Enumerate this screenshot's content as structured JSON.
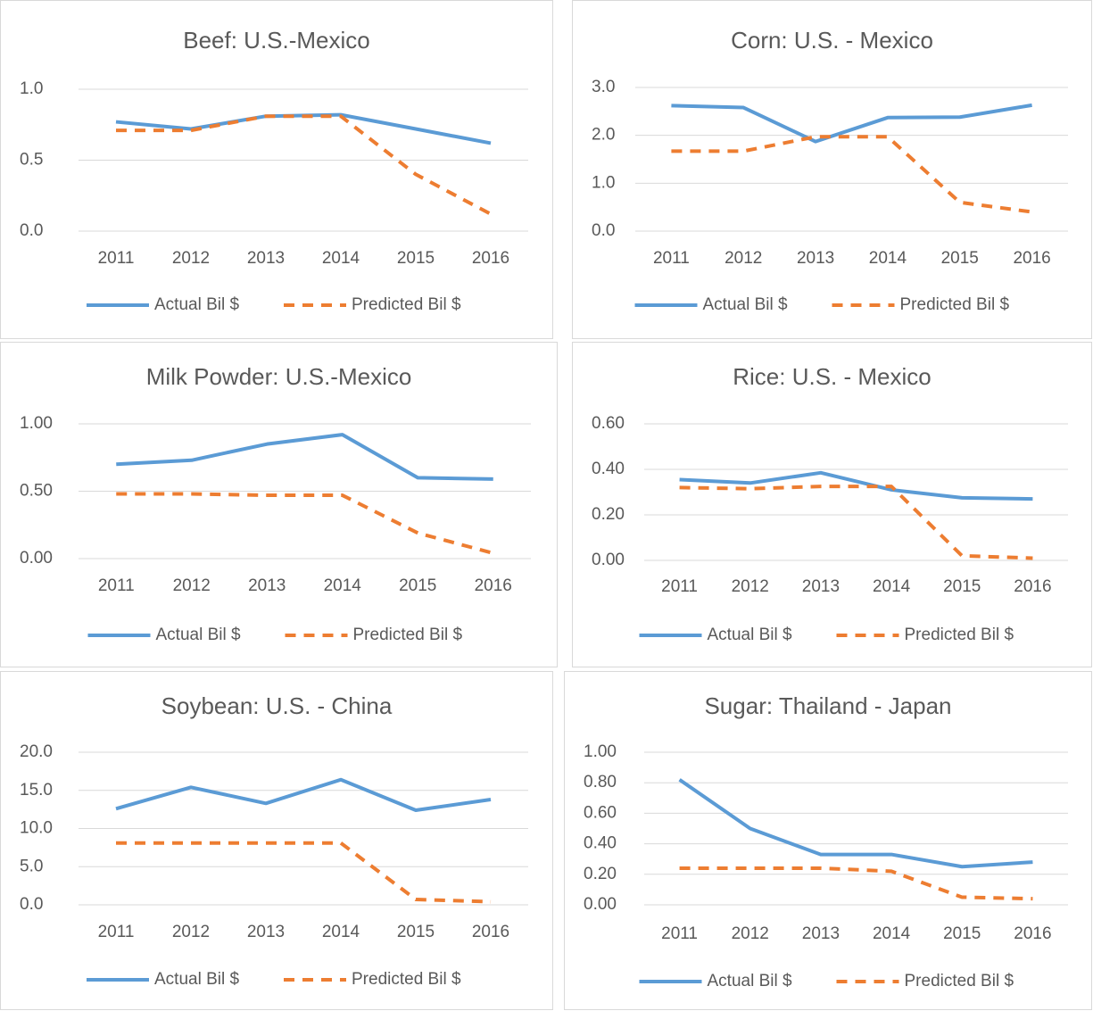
{
  "chart_data": [
    {
      "type": "line",
      "title": "Beef: U.S.-Mexico",
      "categories": [
        "2011",
        "2012",
        "2013",
        "2014",
        "2015",
        "2016"
      ],
      "series": [
        {
          "name": "Actual Bil $",
          "color": "#5b9bd5",
          "line_style": "solid",
          "values": [
            0.77,
            0.72,
            0.81,
            0.82,
            0.72,
            0.62
          ]
        },
        {
          "name": "Predicted Bil $",
          "color": "#ed7d31",
          "line_style": "dashed",
          "values": [
            0.71,
            0.71,
            0.81,
            0.81,
            0.4,
            0.12
          ]
        }
      ],
      "ylim": [
        0,
        1
      ],
      "yticks": [
        {
          "value": 0,
          "label": "0.0"
        },
        {
          "value": 0.5,
          "label": "0.5"
        },
        {
          "value": 1,
          "label": "1.0"
        }
      ],
      "grid": true,
      "legend": "bottom"
    },
    {
      "type": "line",
      "title": "Corn: U.S. - Mexico",
      "categories": [
        "2011",
        "2012",
        "2013",
        "2014",
        "2015",
        "2016"
      ],
      "series": [
        {
          "name": "Actual Bil $",
          "color": "#5b9bd5",
          "line_style": "solid",
          "values": [
            2.62,
            2.58,
            1.87,
            2.37,
            2.38,
            2.63
          ]
        },
        {
          "name": "Predicted Bil $",
          "color": "#ed7d31",
          "line_style": "dashed",
          "values": [
            1.67,
            1.67,
            1.97,
            1.97,
            0.6,
            0.4
          ]
        }
      ],
      "ylim": [
        0,
        3
      ],
      "yticks": [
        {
          "value": 0,
          "label": "0.0"
        },
        {
          "value": 1,
          "label": "1.0"
        },
        {
          "value": 2,
          "label": "2.0"
        },
        {
          "value": 3,
          "label": "3.0"
        }
      ],
      "grid": true,
      "legend": "bottom"
    },
    {
      "type": "line",
      "title": "Milk Powder: U.S.-Mexico",
      "categories": [
        "2011",
        "2012",
        "2013",
        "2014",
        "2015",
        "2016"
      ],
      "series": [
        {
          "name": "Actual Bil $",
          "color": "#5b9bd5",
          "line_style": "solid",
          "values": [
            0.7,
            0.73,
            0.85,
            0.92,
            0.6,
            0.59
          ]
        },
        {
          "name": "Predicted Bil $",
          "color": "#ed7d31",
          "line_style": "dashed",
          "values": [
            0.48,
            0.48,
            0.47,
            0.47,
            0.19,
            0.04
          ]
        }
      ],
      "ylim": [
        0,
        1
      ],
      "yticks": [
        {
          "value": 0,
          "label": "0.00"
        },
        {
          "value": 0.5,
          "label": "0.50"
        },
        {
          "value": 1,
          "label": "1.00"
        }
      ],
      "grid": true,
      "legend": "bottom"
    },
    {
      "type": "line",
      "title": "Rice: U.S. - Mexico",
      "categories": [
        "2011",
        "2012",
        "2013",
        "2014",
        "2015",
        "2016"
      ],
      "series": [
        {
          "name": "Actual Bil $",
          "color": "#5b9bd5",
          "line_style": "solid",
          "values": [
            0.355,
            0.34,
            0.385,
            0.31,
            0.275,
            0.27
          ]
        },
        {
          "name": "Predicted Bil $",
          "color": "#ed7d31",
          "line_style": "dashed",
          "values": [
            0.32,
            0.315,
            0.325,
            0.325,
            0.02,
            0.01
          ]
        }
      ],
      "ylim": [
        0,
        0.6
      ],
      "yticks": [
        {
          "value": 0,
          "label": "0.00"
        },
        {
          "value": 0.2,
          "label": "0.20"
        },
        {
          "value": 0.4,
          "label": "0.40"
        },
        {
          "value": 0.6,
          "label": "0.60"
        }
      ],
      "grid": true,
      "legend": "bottom"
    },
    {
      "type": "line",
      "title": "Soybean: U.S. - China",
      "categories": [
        "2011",
        "2012",
        "2013",
        "2014",
        "2015",
        "2016"
      ],
      "series": [
        {
          "name": "Actual Bil $",
          "color": "#5b9bd5",
          "line_style": "solid",
          "values": [
            12.6,
            15.4,
            13.3,
            16.4,
            12.4,
            13.8
          ]
        },
        {
          "name": "Predicted Bil $",
          "color": "#ed7d31",
          "line_style": "dashed",
          "values": [
            8.1,
            8.1,
            8.1,
            8.1,
            0.7,
            0.4
          ]
        }
      ],
      "ylim": [
        0,
        20
      ],
      "yticks": [
        {
          "value": 0,
          "label": "0.0"
        },
        {
          "value": 5,
          "label": "5.0"
        },
        {
          "value": 10,
          "label": "10.0"
        },
        {
          "value": 15,
          "label": "15.0"
        },
        {
          "value": 20,
          "label": "20.0"
        }
      ],
      "grid": true,
      "legend": "bottom"
    },
    {
      "type": "line",
      "title": "Sugar: Thailand - Japan",
      "categories": [
        "2011",
        "2012",
        "2013",
        "2014",
        "2015",
        "2016"
      ],
      "series": [
        {
          "name": "Actual Bil $",
          "color": "#5b9bd5",
          "line_style": "solid",
          "values": [
            0.82,
            0.5,
            0.33,
            0.33,
            0.25,
            0.28
          ]
        },
        {
          "name": "Predicted Bil $",
          "color": "#ed7d31",
          "line_style": "dashed",
          "values": [
            0.24,
            0.24,
            0.24,
            0.22,
            0.05,
            0.04
          ]
        }
      ],
      "ylim": [
        0,
        1
      ],
      "yticks": [
        {
          "value": 0,
          "label": "0.00"
        },
        {
          "value": 0.2,
          "label": "0.20"
        },
        {
          "value": 0.4,
          "label": "0.40"
        },
        {
          "value": 0.6,
          "label": "0.60"
        },
        {
          "value": 0.8,
          "label": "0.80"
        },
        {
          "value": 1,
          "label": "1.00"
        }
      ],
      "grid": true,
      "legend": "bottom"
    }
  ]
}
